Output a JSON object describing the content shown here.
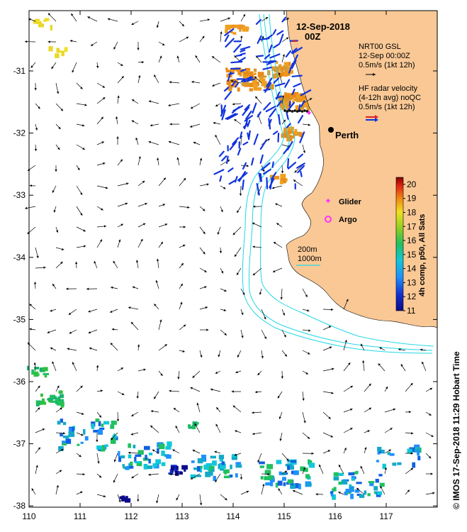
{
  "map": {
    "date_title": "12-Sep-2018",
    "time_title": "00Z",
    "x_ticks": [
      "110",
      "111",
      "112",
      "113",
      "114",
      "115",
      "116",
      "117"
    ],
    "y_ticks": [
      "-31",
      "-32",
      "-33",
      "-34",
      "-35",
      "-36",
      "-37",
      "-38"
    ],
    "place_label": "Perth",
    "credit": "© IMOS 17-Sep-2018 11:29 Hobart Time",
    "colors": {
      "land": "#f9c895",
      "isobath": "#22d8e6",
      "radar_blue": "#1133dd",
      "radar_red": "#dd2222",
      "sst_warm": "#f0961e",
      "glider": "#ff33ff",
      "argo": "#ff33ff"
    }
  },
  "legend": {
    "model_line1": "NRT00 GSL",
    "model_line2": "12-Sep 00:00Z",
    "model_line3": "0.5m/s (1kt 12h)",
    "radar_line1": "HF radar velocity",
    "radar_line2": "(4-12h avg) noQC",
    "radar_line3": "0.5m/s (1kt 12h)",
    "glider_label": "Glider",
    "argo_label": "Argo",
    "isobath_200": "200m",
    "isobath_1000": "1000m"
  },
  "colorbar": {
    "title": "4h comp, p50, All Sats",
    "ticks": [
      "20",
      "19",
      "18",
      "17",
      "16",
      "15",
      "14",
      "13",
      "12",
      "11"
    ],
    "range": [
      11,
      20.5
    ]
  }
}
